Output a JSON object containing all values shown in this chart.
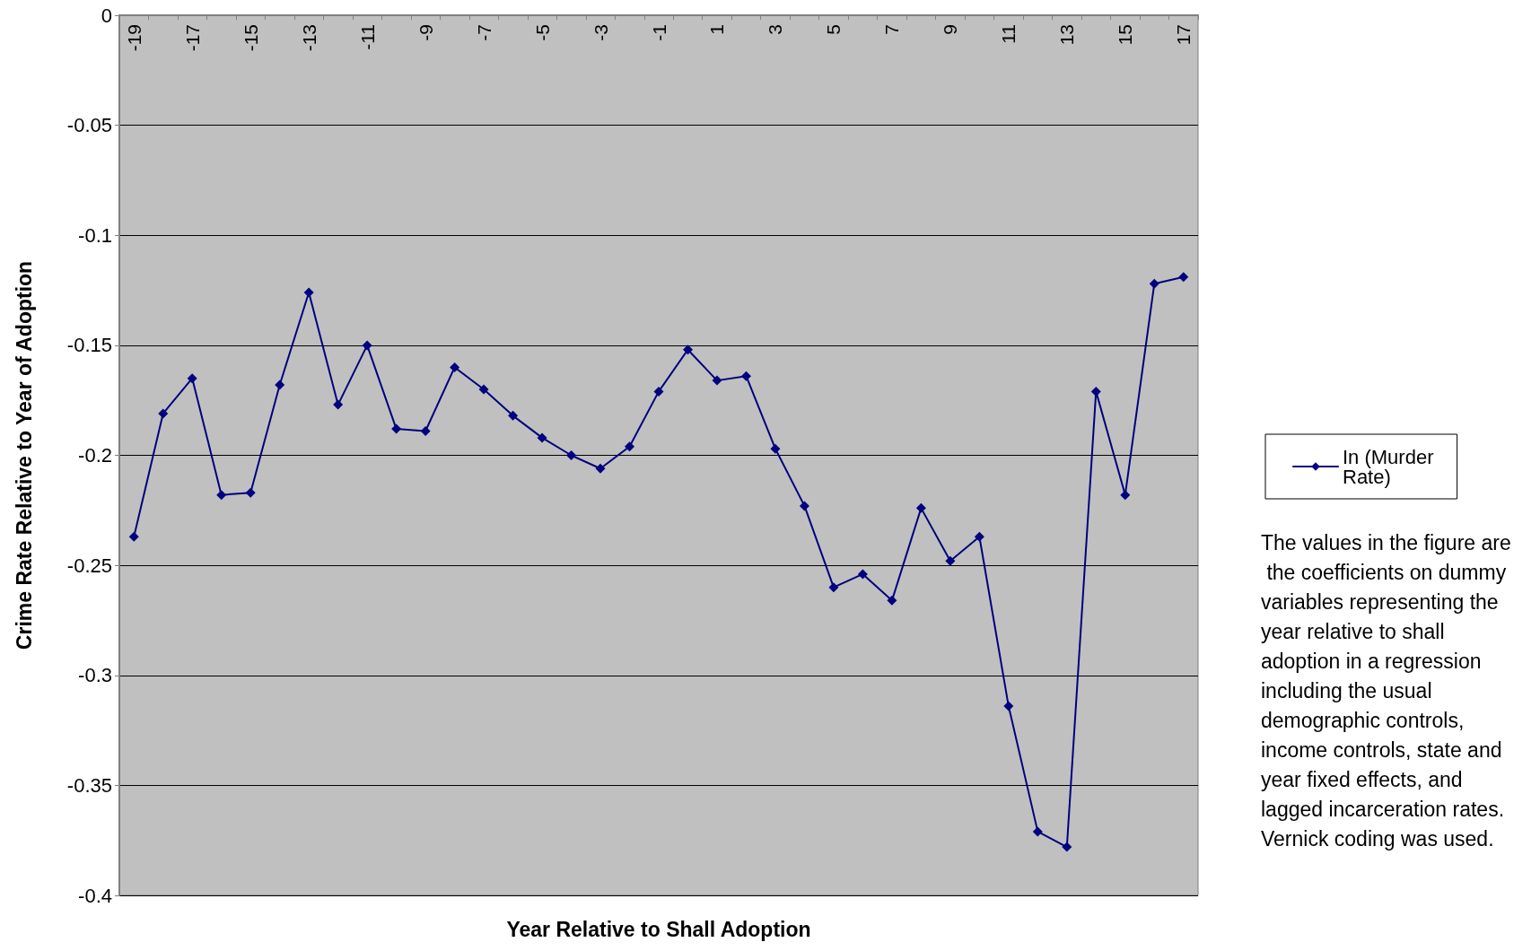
{
  "chart_data": {
    "type": "line",
    "xlabel": "Year Relative to Shall Adoption",
    "ylabel": "Crime Rate Relative to Year of Adoption",
    "categories": [
      "-19",
      null,
      "-17",
      null,
      "-15",
      null,
      "-13",
      null,
      "-11",
      null,
      "-9",
      null,
      "-7",
      null,
      "-5",
      null,
      "-3",
      null,
      "-1",
      null,
      "1",
      null,
      "3",
      null,
      "5",
      null,
      "7",
      null,
      "9",
      null,
      "11",
      null,
      "13",
      null,
      "15",
      null,
      "17"
    ],
    "series": [
      {
        "name": "In (Murder Rate)",
        "color": "#000080",
        "values": [
          -0.237,
          -0.181,
          -0.165,
          -0.218,
          -0.217,
          -0.168,
          -0.126,
          -0.177,
          -0.15,
          -0.188,
          -0.189,
          -0.16,
          -0.17,
          -0.182,
          -0.192,
          -0.2,
          -0.206,
          -0.196,
          -0.171,
          -0.152,
          -0.166,
          -0.164,
          -0.197,
          -0.223,
          -0.26,
          -0.254,
          -0.266,
          -0.224,
          -0.248,
          -0.237,
          -0.314,
          -0.371,
          -0.378,
          -0.171,
          -0.218,
          -0.122,
          -0.119
        ]
      }
    ],
    "ylim": [
      -0.4,
      0
    ],
    "yticks": [
      0,
      -0.05,
      -0.1,
      -0.15,
      -0.2,
      -0.25,
      -0.3,
      -0.35,
      -0.4
    ],
    "grid": "y",
    "legend": "right",
    "marker": "diamond",
    "line_style": "solid",
    "annotations": [
      "The values in the figure are the coefficients on dummy variables representing the year relative to shall adoption in a regression including the usual demographic controls, income controls, state and year fixed effects, and lagged incarceration rates. Vernick coding was used."
    ]
  }
}
